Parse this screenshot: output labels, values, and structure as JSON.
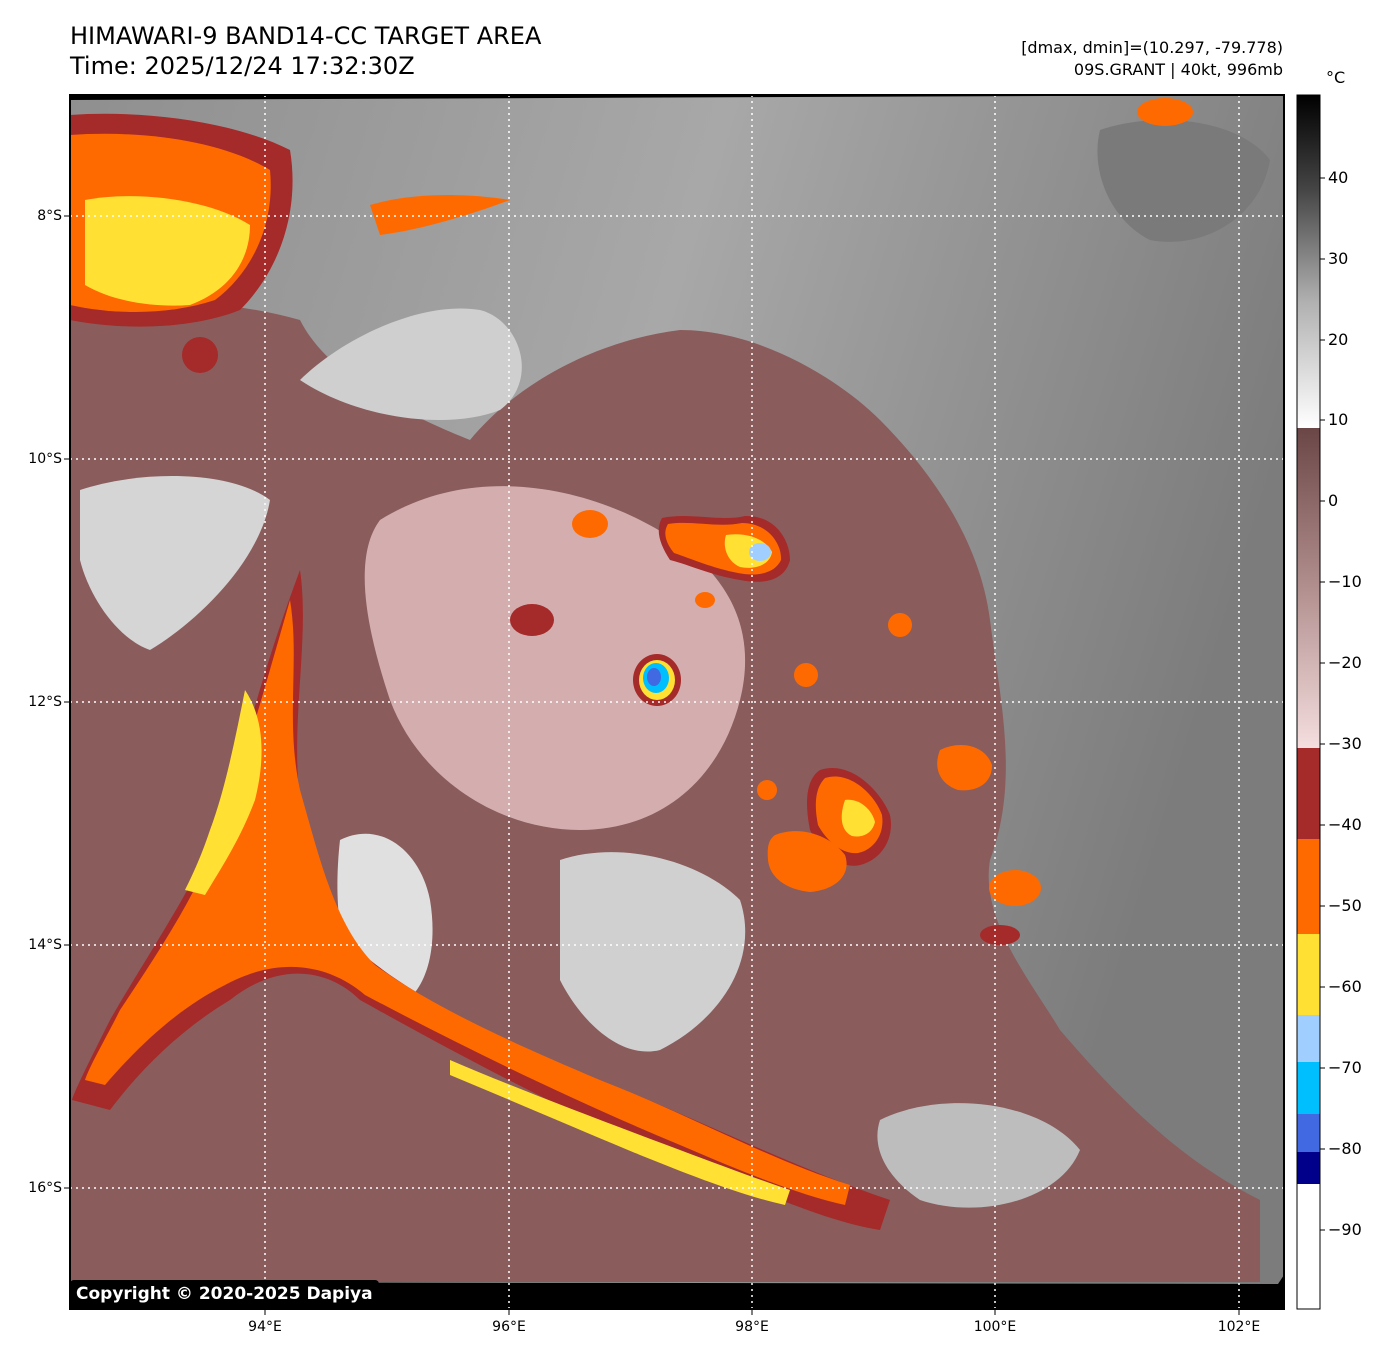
{
  "header": {
    "title_line1": "HIMAWARI-9 BAND14-CC TARGET AREA",
    "title_line2": "Time: 2025/12/24 17:32:30Z",
    "dminmax": "[dmax, dmin]=(10.297, -79.778)",
    "storm": "09S.GRANT | 40kt, 996mb"
  },
  "map": {
    "lat_labels": [
      "8°S",
      "10°S",
      "12°S",
      "14°S",
      "16°S"
    ],
    "lon_labels": [
      "94°E",
      "96°E",
      "98°E",
      "100°E",
      "102°E"
    ],
    "copyright": "Copyright © 2020-2025 Dapiya"
  },
  "colorbar": {
    "unit": "°C",
    "ticks": [
      "40",
      "30",
      "20",
      "10",
      "0",
      "−10",
      "−20",
      "−30",
      "−40",
      "−50",
      "−60",
      "−70",
      "−80",
      "−90"
    ],
    "colors": {
      "cold_dark_blue": "#00008b",
      "blue": "#4169e1",
      "cyan": "#00bfff",
      "light_blue": "#a0cfff",
      "yellow": "#ffe033",
      "orange": "#ff6a00",
      "dark_red": "#a52a2a",
      "pink": "#f2d4d4",
      "mauve_dark": "#7a4e4e",
      "white": "#ffffff",
      "gray": "#9a9a9a",
      "black": "#000000"
    }
  }
}
